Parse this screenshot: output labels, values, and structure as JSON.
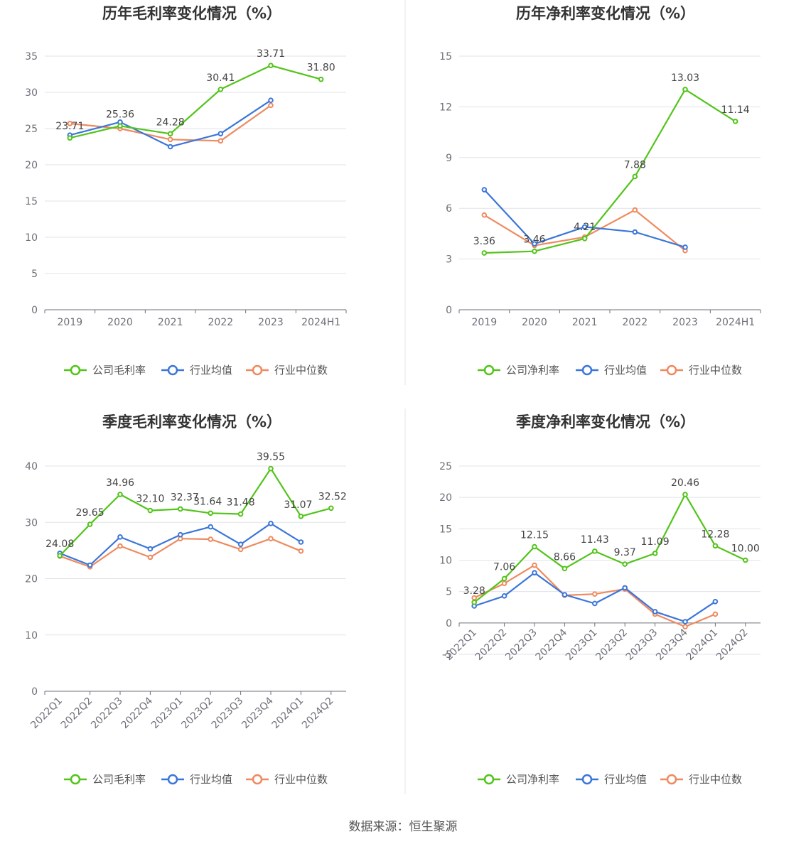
{
  "source_label": "数据来源：恒生聚源",
  "colors": {
    "company": "#52c41a",
    "industry_avg": "#3b76d9",
    "industry_median": "#ee8a5f",
    "grid": "#e0e3ea",
    "axis": "#6e7079"
  },
  "chart_data": [
    {
      "type": "line",
      "title": "历年毛利率变化情况（%）",
      "categories": [
        "2019",
        "2020",
        "2021",
        "2022",
        "2023",
        "2024H1"
      ],
      "ylim": [
        0,
        35
      ],
      "yticks": [
        0,
        5,
        10,
        15,
        20,
        25,
        30,
        35
      ],
      "grid": true,
      "legend_position": "bottom",
      "series": [
        {
          "name": "公司毛利率",
          "values": [
            23.71,
            25.36,
            24.28,
            30.41,
            33.71,
            31.8
          ],
          "labels": [
            "23.71",
            "25.36",
            "24.28",
            "30.41",
            "33.71",
            "31.80"
          ]
        },
        {
          "name": "行业均值",
          "values": [
            24.1,
            25.9,
            22.5,
            24.3,
            28.9,
            null
          ]
        },
        {
          "name": "行业中位数",
          "values": [
            25.7,
            25.0,
            23.5,
            23.3,
            28.2,
            null
          ]
        }
      ]
    },
    {
      "type": "line",
      "title": "历年净利率变化情况（%）",
      "categories": [
        "2019",
        "2020",
        "2021",
        "2022",
        "2023",
        "2024H1"
      ],
      "ylim": [
        0,
        15
      ],
      "yticks": [
        0,
        3,
        6,
        9,
        12,
        15
      ],
      "grid": true,
      "legend_position": "bottom",
      "series": [
        {
          "name": "公司净利率",
          "values": [
            3.36,
            3.46,
            4.21,
            7.88,
            13.03,
            11.14
          ],
          "labels": [
            "3.36",
            "3.46",
            "4.21",
            "7.88",
            "13.03",
            "11.14"
          ]
        },
        {
          "name": "行业均值",
          "values": [
            7.1,
            3.9,
            4.9,
            4.6,
            3.7,
            null
          ]
        },
        {
          "name": "行业中位数",
          "values": [
            5.6,
            3.8,
            4.3,
            5.9,
            3.5,
            null
          ]
        }
      ]
    },
    {
      "type": "line",
      "title": "季度毛利率变化情况（%）",
      "categories": [
        "2022Q1",
        "2022Q2",
        "2022Q3",
        "2022Q4",
        "2023Q1",
        "2023Q2",
        "2023Q3",
        "2023Q4",
        "2024Q1",
        "2024Q2"
      ],
      "ylim": [
        0,
        40
      ],
      "yticks": [
        0,
        10,
        20,
        30,
        40
      ],
      "grid": true,
      "legend_position": "bottom",
      "series": [
        {
          "name": "公司毛利率",
          "values": [
            24.08,
            29.65,
            34.96,
            32.1,
            32.37,
            31.64,
            31.48,
            39.55,
            31.07,
            32.52
          ],
          "labels": [
            "24.08",
            "29.65",
            "34.96",
            "32.10",
            "32.37",
            "31.64",
            "31.48",
            "39.55",
            "31.07",
            "32.52"
          ]
        },
        {
          "name": "行业均值",
          "values": [
            24.5,
            22.4,
            27.4,
            25.3,
            27.8,
            29.2,
            26.1,
            29.8,
            26.5,
            null
          ]
        },
        {
          "name": "行业中位数",
          "values": [
            24.0,
            22.1,
            25.8,
            23.8,
            27.1,
            27.0,
            25.2,
            27.1,
            24.9,
            null
          ]
        }
      ]
    },
    {
      "type": "line",
      "title": "季度净利率变化情况（%）",
      "categories": [
        "2022Q1",
        "2022Q2",
        "2022Q3",
        "2022Q4",
        "2023Q1",
        "2023Q2",
        "2023Q3",
        "2023Q4",
        "2024Q1",
        "2024Q2"
      ],
      "ylim": [
        -5,
        25
      ],
      "yticks": [
        -5,
        0,
        5,
        10,
        15,
        20,
        25
      ],
      "grid": true,
      "legend_position": "bottom",
      "series": [
        {
          "name": "公司净利率",
          "values": [
            3.28,
            7.06,
            12.15,
            8.66,
            11.43,
            9.37,
            11.09,
            20.46,
            12.28,
            10.0
          ],
          "labels": [
            "3.28",
            "7.06",
            "12.15",
            "8.66",
            "11.43",
            "9.37",
            "11.09",
            "20.46",
            "12.28",
            "10.00"
          ]
        },
        {
          "name": "行业均值",
          "values": [
            2.7,
            4.3,
            8.0,
            4.5,
            3.1,
            5.6,
            1.8,
            0.2,
            3.4,
            null
          ]
        },
        {
          "name": "行业中位数",
          "values": [
            4.0,
            6.3,
            9.2,
            4.4,
            4.6,
            5.4,
            1.4,
            -0.6,
            1.4,
            null
          ]
        }
      ]
    }
  ]
}
